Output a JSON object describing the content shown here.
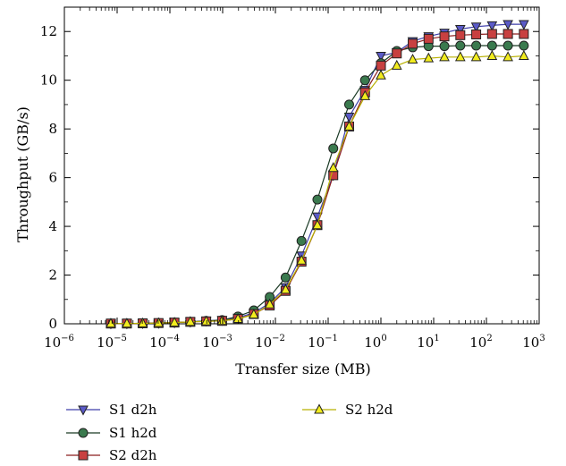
{
  "chart_data": {
    "type": "line",
    "title": "",
    "xlabel": "Transfer size (MB)",
    "ylabel": "Throughput (GB/s)",
    "x_scale": "log",
    "xlim": [
      1e-06,
      1000
    ],
    "ylim": [
      0,
      13
    ],
    "x_ticks": [
      {
        "base": "10",
        "exp": "−6"
      },
      {
        "base": "10",
        "exp": "−5"
      },
      {
        "base": "10",
        "exp": "−4"
      },
      {
        "base": "10",
        "exp": "−3"
      },
      {
        "base": "10",
        "exp": "−2"
      },
      {
        "base": "10",
        "exp": "−1"
      },
      {
        "base": "10",
        "exp": "0"
      },
      {
        "base": "10",
        "exp": "1"
      },
      {
        "base": "10",
        "exp": "2"
      },
      {
        "base": "10",
        "exp": "3"
      }
    ],
    "y_ticks": [
      "0",
      "2",
      "4",
      "6",
      "8",
      "10",
      "12"
    ],
    "grid": false,
    "legend_position": "bottom",
    "x": [
      7.6e-06,
      1.53e-05,
      3.05e-05,
      6.1e-05,
      0.000122,
      0.000244,
      0.000488,
      0.000977,
      0.00195,
      0.0039,
      0.0078,
      0.0156,
      0.03125,
      0.0625,
      0.125,
      0.25,
      0.5,
      1,
      2,
      4,
      8,
      16,
      32,
      64,
      128,
      256,
      512
    ],
    "series": [
      {
        "name": "S1 d2h",
        "marker": "triangle-down",
        "color": "#3f3faa",
        "fill": "#5a5ac8",
        "values": [
          0.01,
          0.01,
          0.02,
          0.03,
          0.05,
          0.08,
          0.12,
          0.15,
          0.25,
          0.45,
          0.85,
          1.5,
          2.8,
          4.4,
          6.1,
          8.5,
          9.6,
          11.0,
          11.15,
          11.6,
          11.8,
          11.95,
          12.1,
          12.2,
          12.25,
          12.3,
          12.3
        ]
      },
      {
        "name": "S1 h2d",
        "marker": "circle",
        "color": "#1a3a24",
        "fill": "#3a7a4e",
        "values": [
          0.01,
          0.01,
          0.02,
          0.03,
          0.05,
          0.08,
          0.12,
          0.15,
          0.3,
          0.55,
          1.1,
          1.9,
          3.4,
          5.1,
          7.2,
          9.0,
          10.0,
          10.7,
          11.2,
          11.35,
          11.4,
          11.4,
          11.42,
          11.42,
          11.42,
          11.42,
          11.42
        ]
      },
      {
        "name": "S2 d2h",
        "marker": "square",
        "color": "#8c1f1f",
        "fill": "#c84040",
        "values": [
          0.01,
          0.01,
          0.02,
          0.03,
          0.05,
          0.08,
          0.1,
          0.12,
          0.2,
          0.4,
          0.75,
          1.35,
          2.55,
          4.05,
          6.1,
          8.1,
          9.5,
          10.6,
          11.1,
          11.5,
          11.7,
          11.8,
          11.85,
          11.88,
          11.9,
          11.9,
          11.9
        ]
      },
      {
        "name": "S2 h2d",
        "marker": "triangle-up",
        "color": "#b8b000",
        "fill": "#f2ec1e",
        "values": [
          0.01,
          0.01,
          0.02,
          0.03,
          0.05,
          0.08,
          0.1,
          0.12,
          0.2,
          0.38,
          0.8,
          1.4,
          2.6,
          4.05,
          6.4,
          8.1,
          9.35,
          10.2,
          10.6,
          10.85,
          10.9,
          10.95,
          10.95,
          10.95,
          11.0,
          10.95,
          11.0
        ]
      }
    ]
  }
}
